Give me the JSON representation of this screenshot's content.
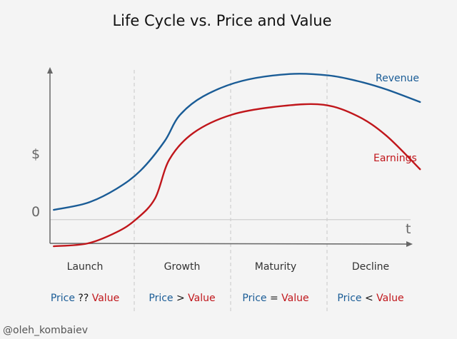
{
  "chart_data": {
    "type": "line",
    "title": "Life Cycle vs. Price and Value",
    "ylabel": "$",
    "xlabel": "t",
    "zero_label": "0",
    "ylim": [
      -1.0,
      5.6
    ],
    "xlim": [
      0,
      4
    ],
    "grid": false,
    "phases": [
      "Launch",
      "Growth",
      "Maturity",
      "Decline"
    ],
    "phase_boundaries": [
      1,
      2,
      3
    ],
    "relations": [
      {
        "price": "Price",
        "op": "??",
        "value": "Value"
      },
      {
        "price": "Price",
        "op": ">",
        "value": "Value"
      },
      {
        "price": "Price",
        "op": "=",
        "value": "Value"
      },
      {
        "price": "Price",
        "op": "<",
        "value": "Value"
      }
    ],
    "series": [
      {
        "name": "Revenue",
        "color": "#1a5c96",
        "x": [
          0.15,
          0.5,
          0.8,
          1.05,
          1.3,
          1.45,
          1.7,
          2.1,
          2.6,
          3.0,
          3.3,
          3.6,
          3.95
        ],
        "y": [
          0.35,
          0.6,
          1.1,
          1.75,
          2.8,
          3.7,
          4.4,
          4.95,
          5.2,
          5.15,
          4.95,
          4.65,
          4.2
        ]
      },
      {
        "name": "Earnings",
        "color": "#c0161b",
        "x": [
          0.15,
          0.5,
          0.8,
          1.0,
          1.2,
          1.35,
          1.6,
          2.0,
          2.5,
          2.95,
          3.3,
          3.6,
          3.95
        ],
        "y": [
          -0.95,
          -0.85,
          -0.45,
          0.0,
          0.75,
          2.15,
          3.1,
          3.75,
          4.05,
          4.1,
          3.7,
          3.0,
          1.8
        ]
      }
    ]
  },
  "colors": {
    "revenue": "#1a5c96",
    "earnings": "#c0161b",
    "axis": "#666666",
    "zero_line": "#cfcfcf",
    "divider": "#c8c8c8"
  },
  "credit": "@oleh_kombaiev"
}
